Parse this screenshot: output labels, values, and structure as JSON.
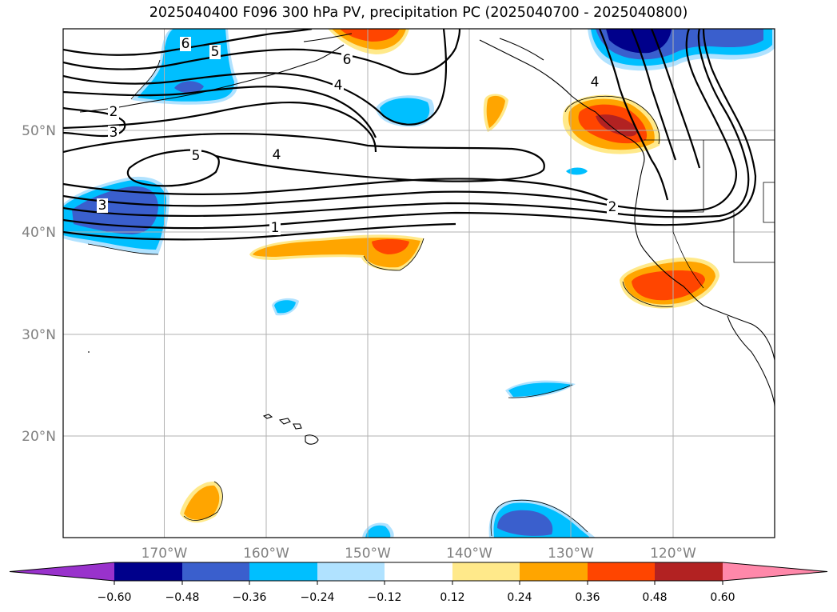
{
  "title": "2025040400 F096 300 hPa PV, precipitation PC (2025040700 - 2025040800)",
  "map": {
    "lat_labels": [
      "50°N",
      "40°N",
      "30°N",
      "20°N"
    ],
    "lon_labels": [
      "170°W",
      "160°W",
      "150°W",
      "140°W",
      "130°W",
      "120°W"
    ],
    "pv_contour_labels": [
      "6",
      "5",
      "6",
      "4",
      "2",
      "3",
      "5",
      "4",
      "3",
      "1",
      "2",
      "4"
    ]
  },
  "colorbar": {
    "ticks": [
      "−0.60",
      "−0.48",
      "−0.36",
      "−0.24",
      "−0.12",
      "0.12",
      "0.24",
      "0.36",
      "0.48",
      "0.60"
    ],
    "colors": [
      "#9932cc",
      "#00008b",
      "#3a5fcd",
      "#00bfff",
      "#b0e2ff",
      "#ffffff",
      "#ffe98a",
      "#ffa500",
      "#ff4500",
      "#b22222",
      "#ff88aa"
    ]
  },
  "colors": {
    "neg_strong": "#00008b",
    "neg_mid": "#3a5fcd",
    "neg_light": "#00bfff",
    "neg_faint": "#b0e2ff",
    "pos_faint": "#ffe98a",
    "pos_light": "#ffa500",
    "pos_mid": "#ff4500",
    "pos_strong": "#b22222"
  }
}
